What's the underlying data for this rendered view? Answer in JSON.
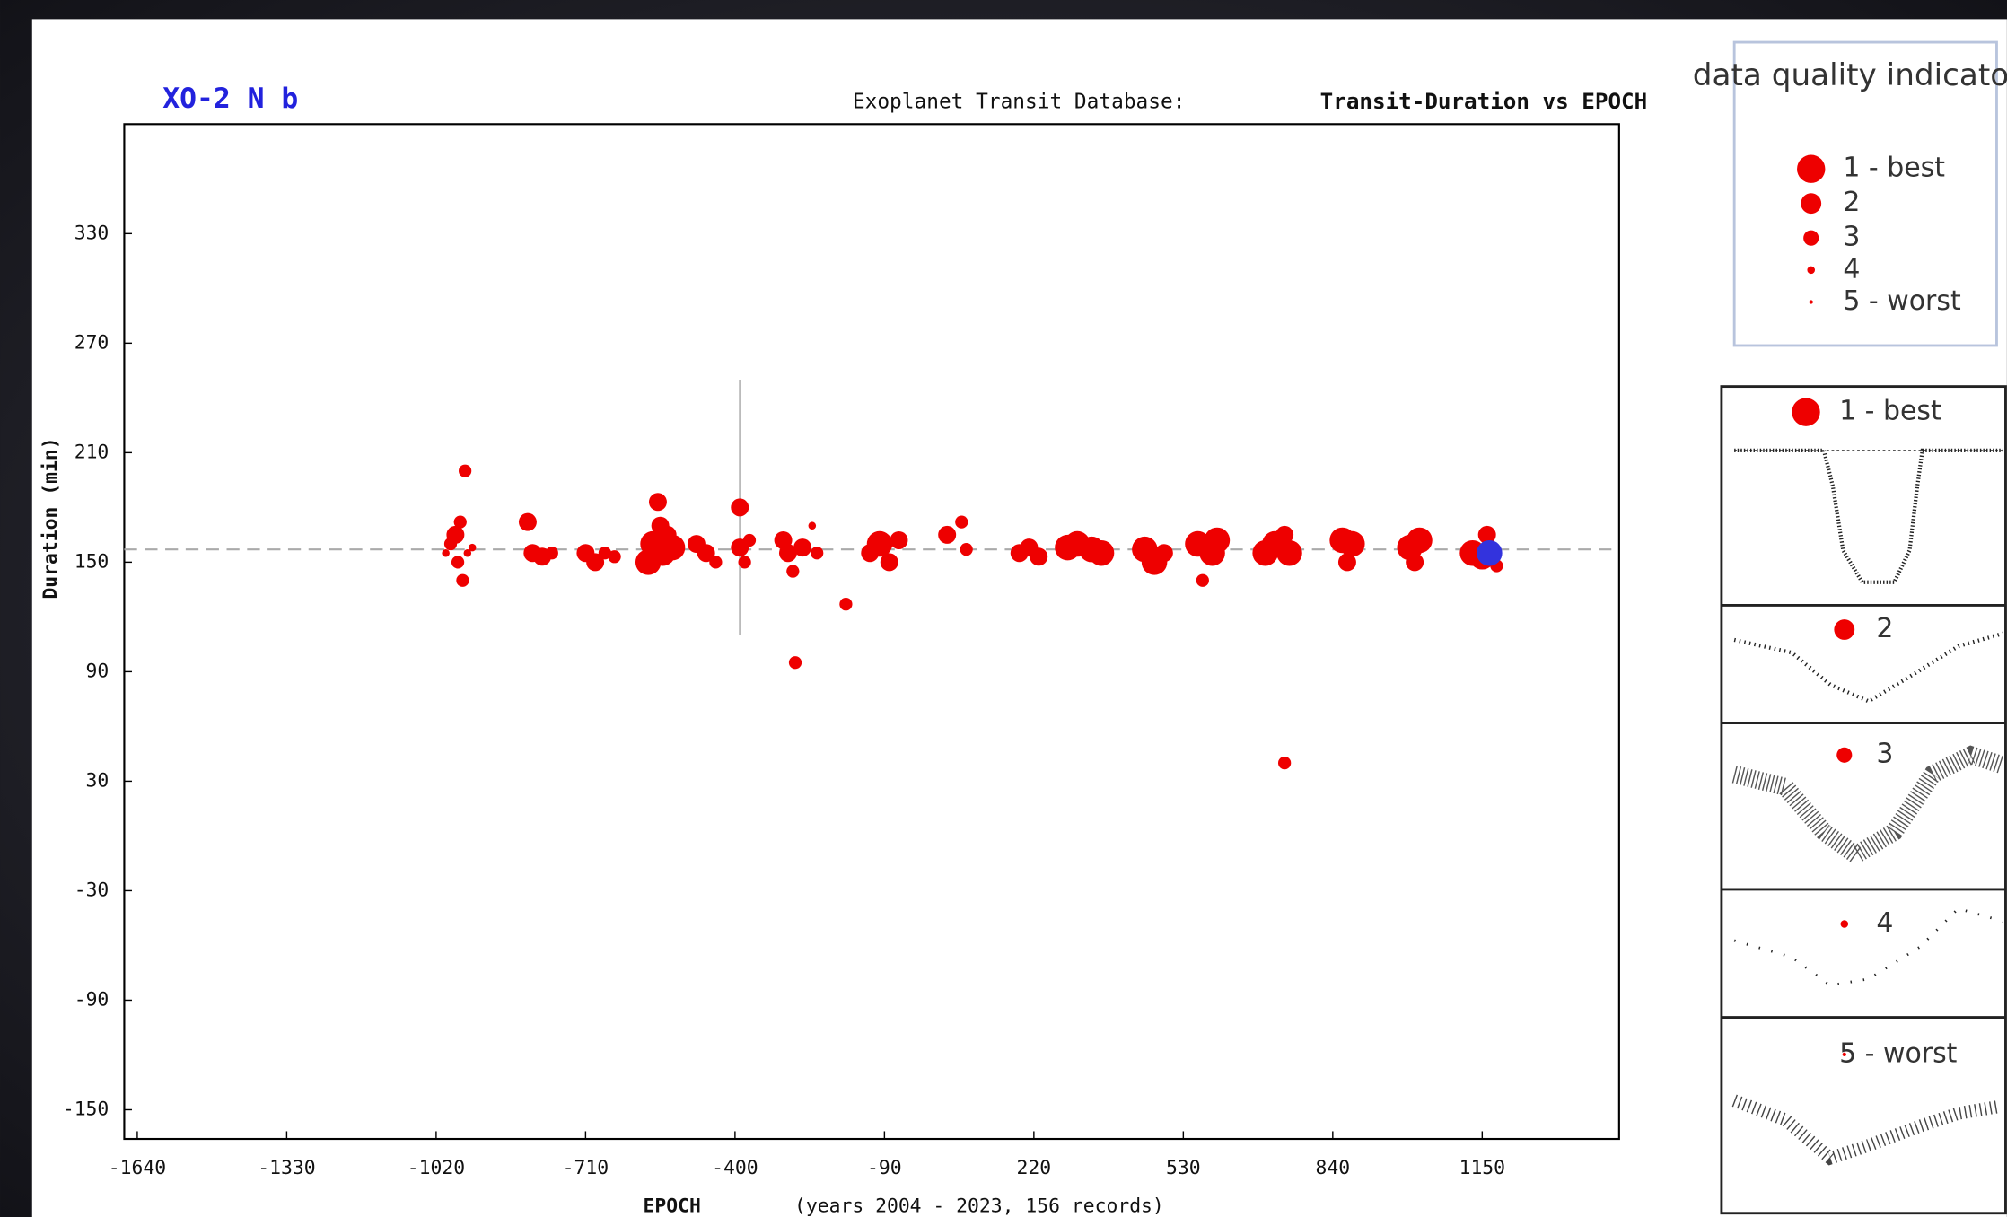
{
  "chart_data": {
    "type": "scatter",
    "title": "XO-2 N b",
    "subtitle": "Exoplanet Transit Database:",
    "heading": "Transit-Duration vs EPOCH",
    "x_label": "EPOCH",
    "x_note": "(years 2004 - 2023, 156 records)",
    "y_label": "Duration (min)",
    "xlim": [
      -1667,
      1434
    ],
    "ylim": [
      -166,
      390
    ],
    "xticks": [
      -1640,
      -1330,
      -1020,
      -710,
      -400,
      -90,
      220,
      530,
      840,
      1150
    ],
    "yticks": [
      -150,
      -90,
      -30,
      30,
      90,
      150,
      210,
      270,
      330
    ],
    "reference_line": 157,
    "series": [
      {
        "color": "#ee0000",
        "x": [
          -1000,
          -990,
          -980,
          -975,
          -970,
          -965,
          -960,
          -955,
          -945,
          -830,
          -820,
          -800,
          -780,
          -710,
          -690,
          -670,
          -650,
          -580,
          -570,
          -560,
          -555,
          -550,
          -540,
          -530,
          -480,
          -460,
          -440,
          -390,
          -390,
          -380,
          -370,
          -300,
          -290,
          -280,
          -275,
          -260,
          -240,
          -230,
          -170,
          -120,
          -100,
          -80,
          -60,
          40,
          70,
          80,
          190,
          210,
          230,
          290,
          310,
          340,
          360,
          450,
          470,
          490,
          560,
          570,
          590,
          600,
          700,
          720,
          740,
          750,
          740,
          860,
          870,
          880,
          1000,
          1010,
          1020,
          1130,
          1150,
          1160,
          1180
        ],
        "values": [
          155,
          160,
          165,
          150,
          172,
          140,
          200,
          155,
          158,
          172,
          155,
          153,
          155,
          155,
          150,
          155,
          153,
          150,
          160,
          183,
          170,
          155,
          165,
          158,
          160,
          155,
          150,
          180,
          158,
          150,
          162,
          162,
          155,
          145,
          95,
          158,
          170,
          155,
          127,
          155,
          160,
          150,
          162,
          165,
          172,
          157,
          155,
          158,
          153,
          158,
          160,
          157,
          155,
          157,
          150,
          155,
          160,
          140,
          155,
          162,
          155,
          160,
          165,
          155,
          40,
          162,
          150,
          160,
          158,
          150,
          162,
          155,
          153,
          165,
          148
        ],
        "quality": [
          4,
          3,
          2,
          3,
          3,
          3,
          3,
          4,
          4,
          2,
          2,
          2,
          3,
          2,
          2,
          3,
          3,
          1,
          1,
          2,
          2,
          1,
          2,
          1,
          2,
          2,
          3,
          2,
          2,
          3,
          3,
          2,
          2,
          3,
          3,
          2,
          4,
          3,
          3,
          2,
          1,
          2,
          2,
          2,
          3,
          3,
          2,
          2,
          2,
          1,
          1,
          1,
          1,
          1,
          1,
          2,
          1,
          3,
          1,
          1,
          1,
          1,
          2,
          1,
          3,
          1,
          2,
          1,
          1,
          2,
          1,
          1,
          1,
          2,
          3
        ],
        "errors": [
          null,
          null,
          null,
          null,
          null,
          null,
          null,
          null,
          null,
          null,
          null,
          null,
          null,
          null,
          null,
          null,
          null,
          null,
          null,
          null,
          null,
          null,
          null,
          null,
          null,
          null,
          null,
          70,
          null,
          null,
          null,
          null,
          null,
          null,
          null,
          null,
          null,
          null,
          null,
          null,
          null,
          null,
          null,
          null,
          null,
          null,
          null,
          null,
          null,
          null,
          null,
          null,
          null,
          null,
          null,
          null,
          null,
          null,
          null,
          null,
          null,
          null,
          null,
          null,
          null,
          null,
          null,
          null,
          null,
          null,
          null,
          null,
          null,
          null,
          null
        ]
      }
    ],
    "highlight": {
      "color": "#3333dd",
      "x": 1165,
      "values": 155
    },
    "legend": {
      "title": "data quality indicator",
      "entries": [
        "1 - best",
        "2",
        "3",
        "4",
        "5 - worst"
      ]
    }
  }
}
